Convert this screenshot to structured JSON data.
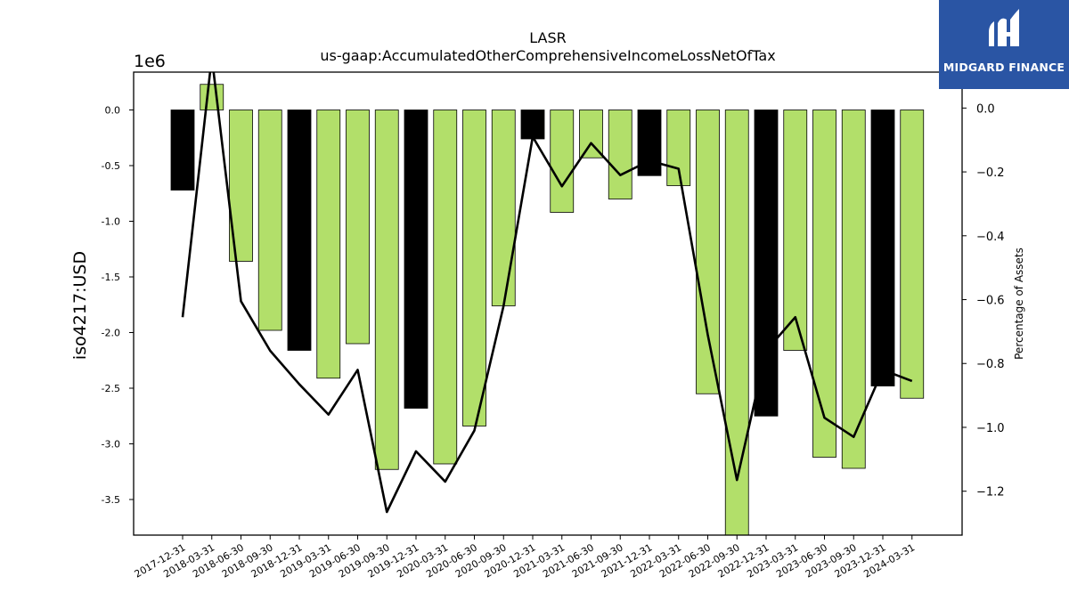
{
  "chart_data": {
    "type": "bar",
    "title": "LASR",
    "subtitle": "us-gaap:AccumulatedOtherComprehensiveIncomeLossNetOfTax",
    "ylabel": "iso4217:USD",
    "y2label": "Percentage of Assets",
    "y_scale_label": "1e6",
    "ylim": [
      -3.82,
      0.34
    ],
    "y2lim": [
      -1.3375,
      0.1125
    ],
    "yticks": [
      "0.0",
      "-0.5",
      "-1.0",
      "-1.5",
      "-2.0",
      "-2.5",
      "-3.0",
      "-3.5"
    ],
    "yticks_values": [
      0,
      -0.5,
      -1.0,
      -1.5,
      -2.0,
      -2.5,
      -3.0,
      -3.5
    ],
    "y2ticks": [
      "0.0",
      "−0.2",
      "−0.4",
      "−0.6",
      "−0.8",
      "−1.0",
      "−1.2"
    ],
    "y2ticks_values": [
      0,
      -0.2,
      -0.4,
      -0.6,
      -0.8,
      -1.0,
      -1.2
    ],
    "categories": [
      "2017-12-31",
      "2018-03-31",
      "2018-06-30",
      "2018-09-30",
      "2018-12-31",
      "2019-03-31",
      "2019-06-30",
      "2019-09-30",
      "2019-12-31",
      "2020-03-31",
      "2020-06-30",
      "2020-09-30",
      "2020-12-31",
      "2021-03-31",
      "2021-06-30",
      "2021-09-30",
      "2021-12-31",
      "2022-03-31",
      "2022-06-30",
      "2022-09-30",
      "2022-12-31",
      "2023-03-31",
      "2023-06-30",
      "2023-09-30",
      "2023-12-31",
      "2024-03-31"
    ],
    "values": [
      -0.72,
      0.23,
      -1.36,
      -1.98,
      -2.16,
      -2.41,
      -2.1,
      -3.23,
      -2.68,
      -3.18,
      -2.84,
      -1.76,
      -0.26,
      -0.92,
      -0.43,
      -0.8,
      -0.59,
      -0.68,
      -2.55,
      -3.85,
      -2.75,
      -2.16,
      -3.12,
      -3.22,
      -2.48,
      -2.59
    ],
    "bar_highlight": [
      true,
      false,
      false,
      false,
      true,
      false,
      false,
      false,
      true,
      false,
      false,
      false,
      true,
      false,
      false,
      false,
      true,
      false,
      false,
      false,
      true,
      false,
      false,
      false,
      true,
      false
    ],
    "pct_of_assets": [
      -0.655,
      0.16,
      -0.605,
      -0.76,
      -0.865,
      -0.96,
      -0.82,
      -1.265,
      -1.075,
      -1.17,
      -1.01,
      -0.62,
      -0.09,
      -0.245,
      -0.11,
      -0.21,
      -0.165,
      -0.19,
      -0.71,
      -1.165,
      -0.76,
      -0.655,
      -0.97,
      -1.03,
      -0.82,
      -0.855
    ],
    "colors": {
      "highlight": "#000000",
      "normal": "#b2df6a",
      "line": "#000000"
    },
    "grid": false
  },
  "branding": {
    "logo_text": "MIDGARD FINANCE",
    "logo_icon": "midgard-logo-icon"
  }
}
